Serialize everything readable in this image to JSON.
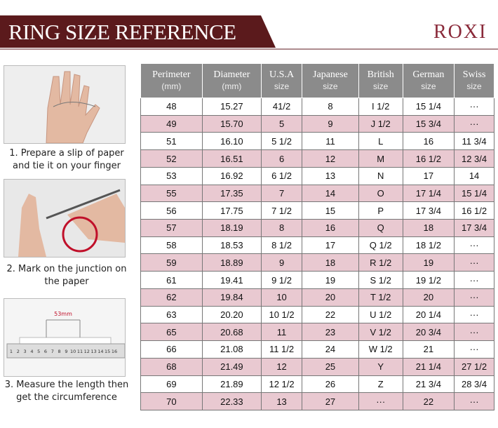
{
  "header": {
    "title": "RING SIZE REFERENCE",
    "logo": "ROXI"
  },
  "steps": [
    {
      "line1": "1. Prepare a slip of paper",
      "line2": "and tie it on your finger"
    },
    {
      "line1": "2. Mark on the junction on",
      "line2": "the paper"
    },
    {
      "line1": "3. Measure the length then",
      "line2": "get the circumference"
    }
  ],
  "ruler": {
    "label": "53mm",
    "numbers": [
      "1",
      "2",
      "3",
      "4",
      "5",
      "6",
      "7",
      "8",
      "9",
      "10",
      "11",
      "12",
      "13",
      "14",
      "15",
      "16"
    ]
  },
  "table": {
    "columns": [
      {
        "name": "Perimeter",
        "unit": "(mm)"
      },
      {
        "name": "Diameter",
        "unit": "(mm)"
      },
      {
        "name": "U.S.A",
        "unit": "size"
      },
      {
        "name": "Japanese",
        "unit": "size"
      },
      {
        "name": "British",
        "unit": "size"
      },
      {
        "name": "German",
        "unit": "size"
      },
      {
        "name": "Swiss",
        "unit": "size"
      }
    ],
    "rows": [
      [
        "48",
        "15.27",
        "41/2",
        "8",
        "I 1/2",
        "15 1/4",
        "···"
      ],
      [
        "49",
        "15.70",
        "5",
        "9",
        "J 1/2",
        "15 3/4",
        "···"
      ],
      [
        "51",
        "16.10",
        "5 1/2",
        "11",
        "L",
        "16",
        "11 3/4"
      ],
      [
        "52",
        "16.51",
        "6",
        "12",
        "M",
        "16 1/2",
        "12 3/4"
      ],
      [
        "53",
        "16.92",
        "6 1/2",
        "13",
        "N",
        "17",
        "14"
      ],
      [
        "55",
        "17.35",
        "7",
        "14",
        "O",
        "17 1/4",
        "15 1/4"
      ],
      [
        "56",
        "17.75",
        "7 1/2",
        "15",
        "P",
        "17 3/4",
        "16 1/2"
      ],
      [
        "57",
        "18.19",
        "8",
        "16",
        "Q",
        "18",
        "17 3/4"
      ],
      [
        "58",
        "18.53",
        "8 1/2",
        "17",
        "Q  1/2",
        "18 1/2",
        "···"
      ],
      [
        "59",
        "18.89",
        "9",
        "18",
        "R 1/2",
        "19",
        "···"
      ],
      [
        "61",
        "19.41",
        "9 1/2",
        "19",
        "S 1/2",
        "19 1/2",
        "···"
      ],
      [
        "62",
        "19.84",
        "10",
        "20",
        "T 1/2",
        "20",
        "···"
      ],
      [
        "63",
        "20.20",
        "10 1/2",
        "22",
        "U 1/2",
        "20 1/4",
        "···"
      ],
      [
        "65",
        "20.68",
        "11",
        "23",
        "V 1/2",
        "20 3/4",
        "···"
      ],
      [
        "66",
        "21.08",
        "11 1/2",
        "24",
        "W 1/2",
        "21",
        "···"
      ],
      [
        "68",
        "21.49",
        "12",
        "25",
        "Y",
        "21 1/4",
        "27 1/2"
      ],
      [
        "69",
        "21.89",
        "12 1/2",
        "26",
        "Z",
        "21 3/4",
        "28 3/4"
      ],
      [
        "70",
        "22.33",
        "13",
        "27",
        "···",
        "22",
        "···"
      ]
    ]
  }
}
